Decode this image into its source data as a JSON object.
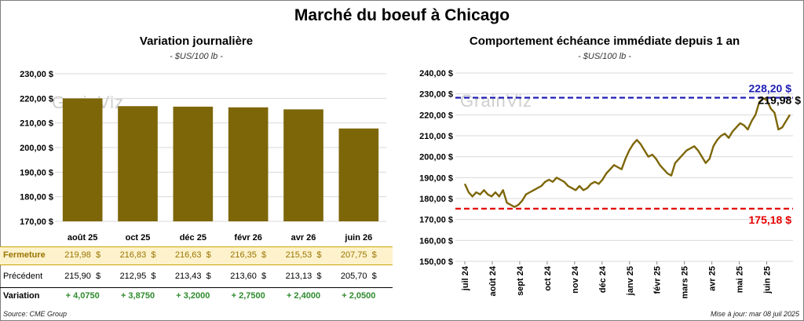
{
  "title": "Marché du boeuf à Chicago",
  "left": {
    "subtitle": "Variation journalière",
    "unit": "- $US/100 lb -",
    "watermark": "GrainViz"
  },
  "right": {
    "subtitle": "Comportement échéance immédiate depuis 1 an",
    "unit": "- $US/100 lb -",
    "watermark": "GrainViz"
  },
  "table": {
    "row_labels": {
      "close": "Fermeture",
      "prev": "Précédent",
      "var": "Variation"
    },
    "close": [
      "219,98  $",
      "216,83  $",
      "216,63  $",
      "216,35  $",
      "215,53  $",
      "207,75  $"
    ],
    "prev": [
      "215,90  $",
      "212,95  $",
      "213,43  $",
      "213,60  $",
      "213,13  $",
      "205,70  $"
    ],
    "var": [
      "+ 4,0750",
      "+ 3,8750",
      "+ 3,2000",
      "+ 2,7500",
      "+ 2,4000",
      "+ 2,0500"
    ],
    "close_bg": "#fdf2cc",
    "var_color": "#2e8b2e"
  },
  "footer": {
    "source": "Source: CME Group",
    "updated": "Mise à jour: mar 08 juil 2025"
  },
  "chart_data": [
    {
      "type": "bar",
      "title": "Variation journalière",
      "categories": [
        "août 25",
        "oct 25",
        "déc 25",
        "févr 26",
        "avr 26",
        "juin 26"
      ],
      "values": [
        219.98,
        216.83,
        216.63,
        216.35,
        215.53,
        207.75
      ],
      "ylim": [
        170,
        230
      ],
      "yticks": [
        "170,00 $",
        "180,00 $",
        "190,00 $",
        "200,00 $",
        "210,00 $",
        "220,00 $",
        "230,00 $"
      ],
      "bar_color": "#7d6608",
      "grid": true
    },
    {
      "type": "line",
      "title": "Comportement échéance immédiate depuis 1 an",
      "ylim": [
        150,
        240
      ],
      "yticks": [
        "150,00 $",
        "160,00 $",
        "170,00 $",
        "180,00 $",
        "190,00 $",
        "200,00 $",
        "210,00 $",
        "220,00 $",
        "230,00 $",
        "240,00 $"
      ],
      "x_labels": [
        "juil 24",
        "août 24",
        "sept 24",
        "oct 24",
        "nov 24",
        "déc 24",
        "janv 25",
        "févr 25",
        "mars 25",
        "avr 25",
        "mai 25",
        "juin 25"
      ],
      "values": [
        187,
        183,
        181,
        183,
        182,
        184,
        182,
        181,
        183,
        181,
        184,
        178,
        177,
        176,
        177,
        179,
        182,
        183,
        184,
        185,
        186,
        188,
        189,
        188,
        190,
        189,
        188,
        186,
        185,
        184,
        186,
        184,
        185,
        187,
        188,
        187,
        189,
        192,
        194,
        196,
        195,
        194,
        199,
        203,
        206,
        208,
        206,
        203,
        200,
        201,
        199,
        196,
        194,
        192,
        191,
        197,
        199,
        201,
        203,
        204,
        205,
        203,
        200,
        197,
        199,
        205,
        208,
        210,
        211,
        209,
        212,
        214,
        216,
        215,
        213,
        217,
        220,
        226,
        228,
        227,
        223,
        221,
        213,
        214,
        217,
        220
      ],
      "series_color": "#7d6608",
      "max_value": 228.2,
      "min_value": 175.18,
      "last_value": 219.98,
      "max_label": "228,20 $",
      "min_label": "175,18 $",
      "last_label": "219,98 $",
      "max_color": "#1f1fb4",
      "min_color": "#e60000",
      "grid": true
    }
  ]
}
